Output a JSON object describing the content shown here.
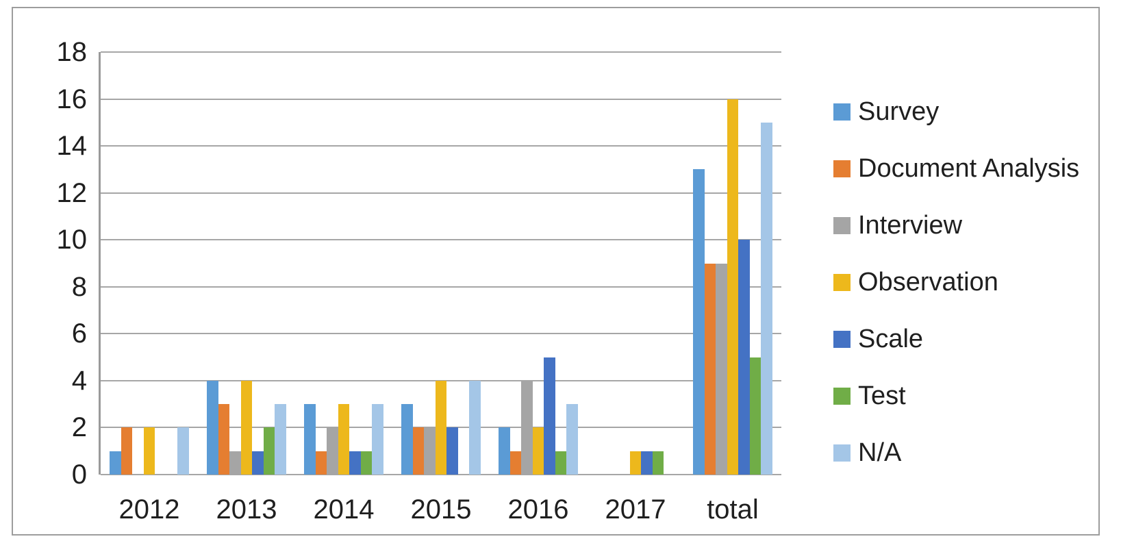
{
  "chart_data": {
    "type": "bar",
    "title": "",
    "xlabel": "",
    "ylabel": "",
    "categories": [
      "2012",
      "2013",
      "2014",
      "2015",
      "2016",
      "2017",
      "total"
    ],
    "series": [
      {
        "name": "Survey",
        "color": "#5B9BD5",
        "values": [
          1,
          4,
          3,
          3,
          2,
          0,
          13
        ]
      },
      {
        "name": "Document Analysis",
        "color": "#E57E31",
        "values": [
          2,
          3,
          1,
          2,
          1,
          0,
          9
        ]
      },
      {
        "name": "Interview",
        "color": "#A5A5A5",
        "values": [
          0,
          1,
          2,
          2,
          4,
          0,
          9
        ]
      },
      {
        "name": "Observation",
        "color": "#EDB81C",
        "values": [
          2,
          4,
          3,
          4,
          2,
          1,
          16
        ]
      },
      {
        "name": "Scale",
        "color": "#4472C4",
        "values": [
          0,
          1,
          1,
          2,
          5,
          1,
          10
        ]
      },
      {
        "name": "Test",
        "color": "#70AD47",
        "values": [
          0,
          2,
          1,
          0,
          1,
          1,
          5
        ]
      },
      {
        "name": "N/A",
        "color": "#A4C6E7",
        "values": [
          2,
          3,
          3,
          4,
          3,
          0,
          15
        ]
      }
    ],
    "ylim": [
      0,
      18
    ],
    "y_ticks": [
      0,
      2,
      4,
      6,
      8,
      10,
      12,
      14,
      16,
      18
    ],
    "grid": true,
    "legend_position": "right"
  },
  "colors": {
    "gridline": "#a6a6a6",
    "axis_line": "#9a9a9a",
    "frame_border": "#9d9d9d",
    "background": "#ffffff",
    "text": "#1f1f1f"
  }
}
